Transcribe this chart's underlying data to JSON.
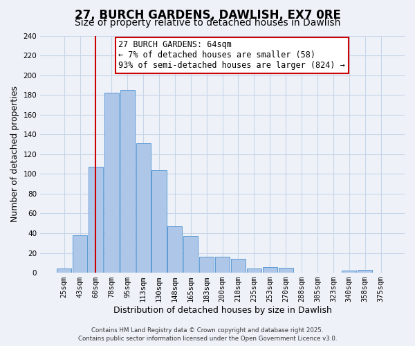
{
  "title": "27, BURCH GARDENS, DAWLISH, EX7 0RE",
  "subtitle": "Size of property relative to detached houses in Dawlish",
  "xlabel": "Distribution of detached houses by size in Dawlish",
  "ylabel": "Number of detached properties",
  "categories": [
    "25sqm",
    "43sqm",
    "60sqm",
    "78sqm",
    "95sqm",
    "113sqm",
    "130sqm",
    "148sqm",
    "165sqm",
    "183sqm",
    "200sqm",
    "218sqm",
    "235sqm",
    "253sqm",
    "270sqm",
    "288sqm",
    "305sqm",
    "323sqm",
    "340sqm",
    "358sqm",
    "375sqm"
  ],
  "values": [
    4,
    38,
    107,
    182,
    185,
    131,
    104,
    47,
    37,
    16,
    16,
    14,
    4,
    6,
    5,
    0,
    0,
    0,
    2,
    3,
    0
  ],
  "bar_color": "#aec6e8",
  "bar_edge_color": "#5b9bd5",
  "grid_color": "#c8d4e8",
  "background_color": "#eef2f8",
  "vline_color": "#cc0000",
  "vline_x": 2.0,
  "annotation_text": "27 BURCH GARDENS: 64sqm\n← 7% of detached houses are smaller (58)\n93% of semi-detached houses are larger (824) →",
  "ylim": [
    0,
    240
  ],
  "yticks": [
    0,
    20,
    40,
    60,
    80,
    100,
    120,
    140,
    160,
    180,
    200,
    220,
    240
  ],
  "footnote1": "Contains HM Land Registry data © Crown copyright and database right 2025.",
  "footnote2": "Contains public sector information licensed under the Open Government Licence v3.0.",
  "title_fontsize": 12,
  "subtitle_fontsize": 10,
  "label_fontsize": 9,
  "tick_fontsize": 7.5,
  "annot_fontsize": 8.5
}
